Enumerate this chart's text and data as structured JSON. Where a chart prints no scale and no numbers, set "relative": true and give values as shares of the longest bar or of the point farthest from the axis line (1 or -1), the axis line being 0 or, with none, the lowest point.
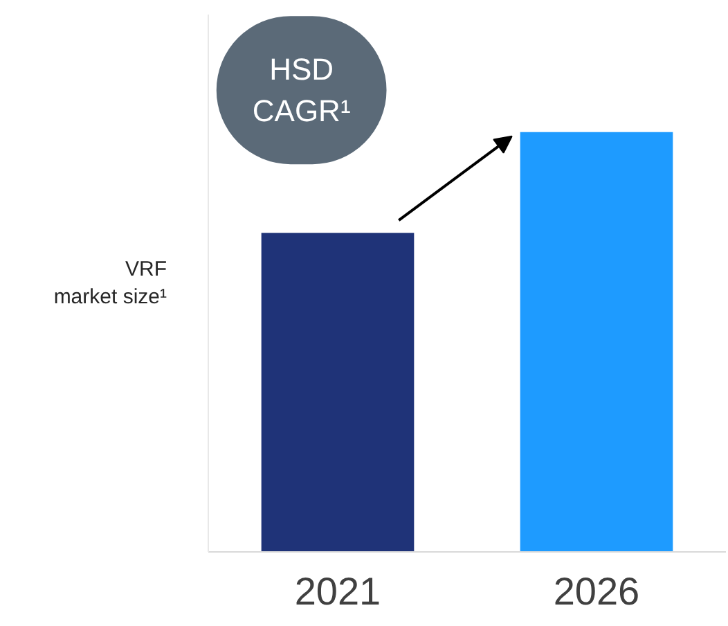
{
  "chart_data": {
    "type": "bar",
    "relative": true,
    "ylabel": "VRF\nmarket size¹",
    "categories": [
      "2021",
      "2026"
    ],
    "values": [
      0.76,
      1
    ],
    "colors": [
      "#1f3378",
      "#1e9bff"
    ],
    "annotations": [
      "HSD\nCAGR¹"
    ],
    "grid": false
  }
}
